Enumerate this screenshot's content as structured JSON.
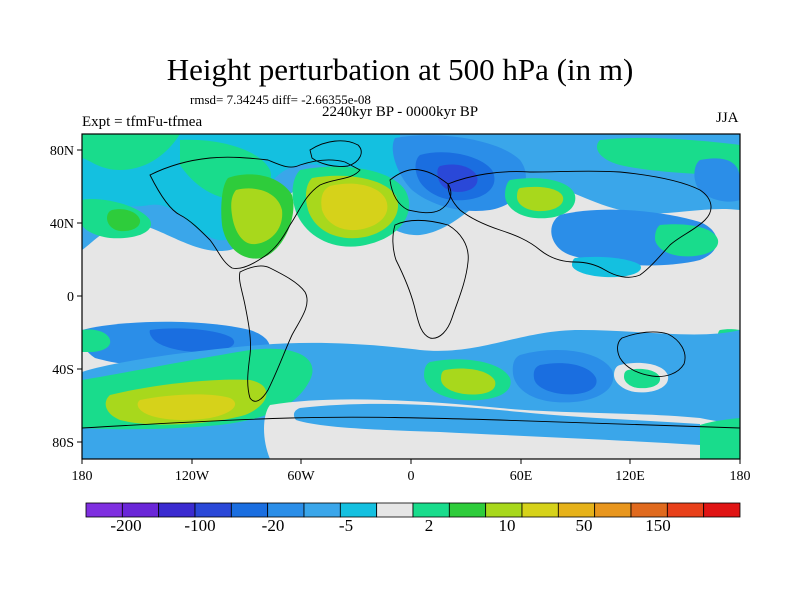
{
  "title": "Height perturbation at 500 hPa (in m)",
  "stats": "rmsd= 7.34245 diff= -2.66355e-08",
  "period": "2240kyr BP - 0000kyr BP",
  "experiment": "Expt = tfmFu-tfmea",
  "season": "JJA",
  "lat_ticks": [
    "80N",
    "40N",
    "0",
    "40S",
    "80S"
  ],
  "lon_ticks": [
    "180",
    "120W",
    "60W",
    "0",
    "60E",
    "120E",
    "180"
  ],
  "colorbar": {
    "colors": [
      "#7f2fe0",
      "#6a26d8",
      "#3b2bd0",
      "#2a48d8",
      "#1a6ee0",
      "#2b8ee8",
      "#3aa6ea",
      "#14c0e0",
      "#e6e6e6",
      "#19dc8c",
      "#2ecc3b",
      "#a8d81c",
      "#d6d21a",
      "#e6b21a",
      "#e8961e",
      "#e06a1e",
      "#e8401a",
      "#e01414"
    ],
    "labels": [
      "-200",
      "-100",
      "-20",
      "-5",
      "2",
      "10",
      "50",
      "150"
    ]
  }
}
